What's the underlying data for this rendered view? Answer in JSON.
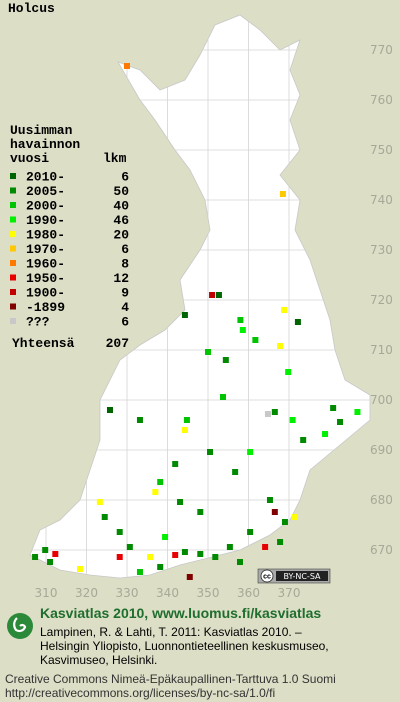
{
  "title": "Holcus",
  "legend": {
    "heading": [
      "Uusimman",
      "havainnon",
      "vuosi"
    ],
    "count_heading": "lkm",
    "entries": [
      {
        "label": "2010-",
        "count": 6,
        "color": "#006400"
      },
      {
        "label": "2005-",
        "count": 50,
        "color": "#008a00"
      },
      {
        "label": "2000-",
        "count": 40,
        "color": "#00c400"
      },
      {
        "label": "1990-",
        "count": 46,
        "color": "#00f000"
      },
      {
        "label": "1980-",
        "count": 20,
        "color": "#ffff00"
      },
      {
        "label": "1970-",
        "count": 6,
        "color": "#ffc800"
      },
      {
        "label": "1960-",
        "count": 8,
        "color": "#ff7800"
      },
      {
        "label": "1950-",
        "count": 12,
        "color": "#e80000"
      },
      {
        "label": "1900-",
        "count": 9,
        "color": "#c00000"
      },
      {
        "label": "-1899",
        "count": 4,
        "color": "#800000"
      },
      {
        "label": "???",
        "count": 6,
        "color": "#c8c8c8"
      }
    ],
    "total_label": "Yhteensä",
    "total": 207
  },
  "map": {
    "xlim": [
      300,
      390
    ],
    "ylim": [
      662,
      780
    ],
    "xticks": [
      310,
      320,
      330,
      340,
      350,
      360,
      370
    ],
    "yticks": [
      670,
      680,
      690,
      700,
      710,
      720,
      730,
      740,
      750,
      760,
      770
    ],
    "observations": [
      {
        "x": 330.0,
        "y": 766.8,
        "period": 6
      },
      {
        "x": 368.5,
        "y": 741.2,
        "period": 5
      },
      {
        "x": 351.0,
        "y": 721,
        "period": 8
      },
      {
        "x": 352.7,
        "y": 721,
        "period": 0
      },
      {
        "x": 344.3,
        "y": 717,
        "period": 0
      },
      {
        "x": 368.8,
        "y": 718,
        "period": 4
      },
      {
        "x": 372.2,
        "y": 715.6,
        "period": 0
      },
      {
        "x": 358,
        "y": 716,
        "period": 2
      },
      {
        "x": 358.6,
        "y": 714,
        "period": 3
      },
      {
        "x": 361.7,
        "y": 712,
        "period": 2
      },
      {
        "x": 367.8,
        "y": 710.8,
        "period": 4
      },
      {
        "x": 350.0,
        "y": 709.6,
        "period": 2
      },
      {
        "x": 354.4,
        "y": 708,
        "period": 1
      },
      {
        "x": 369.8,
        "y": 705.6,
        "period": 3
      },
      {
        "x": 353.7,
        "y": 700.6,
        "period": 2
      },
      {
        "x": 364.8,
        "y": 697.2,
        "period": 10
      },
      {
        "x": 366.5,
        "y": 697.6,
        "period": 1
      },
      {
        "x": 370.9,
        "y": 696,
        "period": 3
      },
      {
        "x": 380.9,
        "y": 698.4,
        "period": 1
      },
      {
        "x": 386.9,
        "y": 697.6,
        "period": 3
      },
      {
        "x": 382.6,
        "y": 695.6,
        "period": 1
      },
      {
        "x": 378.9,
        "y": 693.2,
        "period": 3
      },
      {
        "x": 373.5,
        "y": 692,
        "period": 1
      },
      {
        "x": 344.8,
        "y": 696,
        "period": 2
      },
      {
        "x": 344.3,
        "y": 694,
        "period": 4
      },
      {
        "x": 325.8,
        "y": 698,
        "period": 0
      },
      {
        "x": 333.2,
        "y": 696,
        "period": 1
      },
      {
        "x": 350.5,
        "y": 689.6,
        "period": 1
      },
      {
        "x": 360.4,
        "y": 689.6,
        "period": 3
      },
      {
        "x": 356.7,
        "y": 685.6,
        "period": 1
      },
      {
        "x": 341.9,
        "y": 687.2,
        "period": 1
      },
      {
        "x": 338.2,
        "y": 683.6,
        "period": 2
      },
      {
        "x": 337,
        "y": 681.6,
        "period": 4
      },
      {
        "x": 343.1,
        "y": 679.6,
        "period": 1
      },
      {
        "x": 348.1,
        "y": 677.6,
        "period": 1
      },
      {
        "x": 365.3,
        "y": 680,
        "period": 1
      },
      {
        "x": 366.5,
        "y": 677.6,
        "period": 9
      },
      {
        "x": 369,
        "y": 675.6,
        "period": 1
      },
      {
        "x": 371.4,
        "y": 676.6,
        "period": 4
      },
      {
        "x": 360.4,
        "y": 673.6,
        "period": 1
      },
      {
        "x": 364.1,
        "y": 670.6,
        "period": 7
      },
      {
        "x": 367.8,
        "y": 671.6,
        "period": 1
      },
      {
        "x": 323.3,
        "y": 679.6,
        "period": 4
      },
      {
        "x": 324.5,
        "y": 676.6,
        "period": 1
      },
      {
        "x": 328.2,
        "y": 673.6,
        "period": 1
      },
      {
        "x": 330.7,
        "y": 670.6,
        "period": 1
      },
      {
        "x": 339.4,
        "y": 672.6,
        "period": 3
      },
      {
        "x": 344.3,
        "y": 669.6,
        "period": 1
      },
      {
        "x": 348.1,
        "y": 669.2,
        "period": 1
      },
      {
        "x": 351.8,
        "y": 668.6,
        "period": 1
      },
      {
        "x": 335.7,
        "y": 668.6,
        "period": 4
      },
      {
        "x": 341.9,
        "y": 669,
        "period": 7
      },
      {
        "x": 338.2,
        "y": 666.6,
        "period": 1
      },
      {
        "x": 309.8,
        "y": 670.0,
        "period": 1
      },
      {
        "x": 312.3,
        "y": 669.2,
        "period": 7
      },
      {
        "x": 307.3,
        "y": 668.6,
        "period": 1
      },
      {
        "x": 311,
        "y": 667.6,
        "period": 1
      },
      {
        "x": 318.4,
        "y": 666.2,
        "period": 4
      },
      {
        "x": 328.2,
        "y": 668.6,
        "period": 7
      },
      {
        "x": 357.9,
        "y": 667.6,
        "period": 1
      },
      {
        "x": 333.2,
        "y": 665.6,
        "period": 2
      },
      {
        "x": 345.5,
        "y": 664.6,
        "period": 9
      },
      {
        "x": 355.4,
        "y": 670.6,
        "period": 1
      }
    ]
  },
  "badge": {
    "icon": "cc",
    "text": "BY-NC-SA"
  },
  "footer": {
    "title": "Kasviatlas 2010, www.luomus.fi/kasviatlas",
    "citation": [
      "Lampinen, R. & Lahti, T. 2011: Kasviatlas 2010. –",
      "Helsingin Yliopisto, Luonnontieteellinen keskusmuseo,",
      "Kasvimuseo, Helsinki."
    ],
    "license": [
      "Creative Commons Nimeä-Epäkaupallinen-Tarttuva 1.0 Suomi",
      "http://creativecommons.org/licenses/by-nc-sa/1.0/fi"
    ]
  }
}
